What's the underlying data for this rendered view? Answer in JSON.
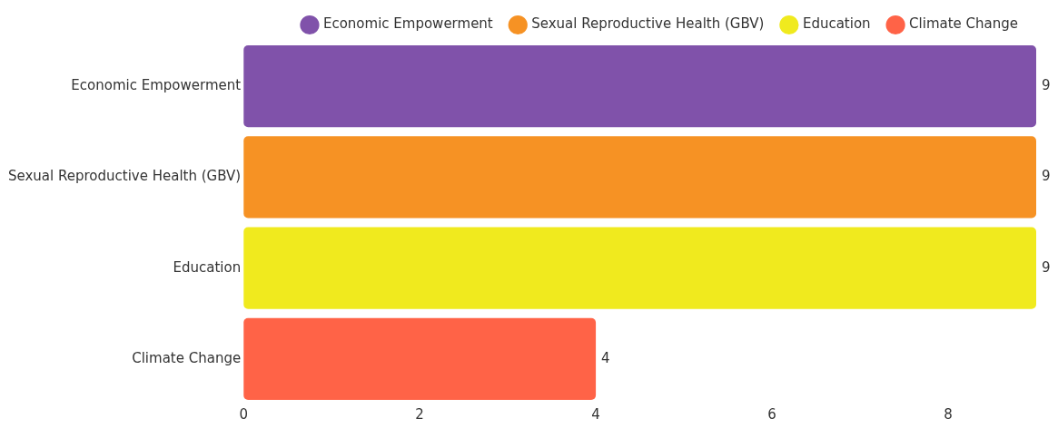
{
  "chart_data": {
    "type": "bar",
    "orientation": "horizontal",
    "categories": [
      "Economic Empowerment",
      "Sexual Reproductive Health (GBV)",
      "Education",
      "Climate Change"
    ],
    "series": [
      {
        "name": "Economic Empowerment",
        "color": "#8052aa",
        "values": [
          9,
          null,
          null,
          null
        ]
      },
      {
        "name": "Sexual Reproductive Health (GBV)",
        "color": "#f69224",
        "values": [
          null,
          9,
          null,
          null
        ]
      },
      {
        "name": "Education",
        "color": "#f0ea1e",
        "values": [
          null,
          null,
          9,
          null
        ]
      },
      {
        "name": "Climate Change",
        "color": "#ff6347",
        "values": [
          null,
          null,
          null,
          4
        ]
      }
    ],
    "xlim": [
      0,
      9
    ],
    "xticks": [
      0,
      2,
      4,
      6,
      8
    ],
    "grid": false,
    "legend": "top right",
    "data_labels": true
  }
}
